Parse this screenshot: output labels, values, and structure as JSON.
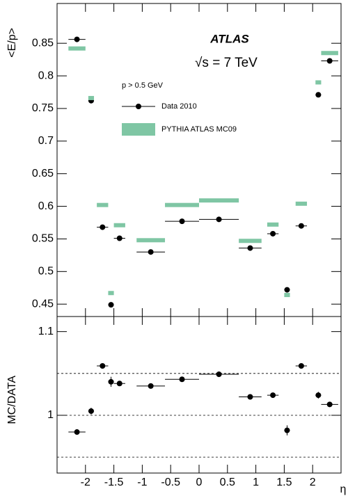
{
  "chart_data": [
    {
      "type": "scatter",
      "y_label": "<E/p>",
      "annotation": "ATLAS",
      "energy_label": "√s = 7 TeV",
      "cut_label": "p > 0.5 GeV",
      "x": [
        -2.15,
        -1.9,
        -1.7,
        -1.55,
        -1.4,
        -0.85,
        -0.3,
        0.35,
        0.9,
        1.3,
        1.55,
        1.8,
        2.1,
        2.3
      ],
      "xerr": [
        0.15,
        0.05,
        0.1,
        0.05,
        0.1,
        0.25,
        0.3,
        0.35,
        0.2,
        0.1,
        0.05,
        0.1,
        0.05,
        0.15
      ],
      "series": [
        {
          "name": "Data 2010",
          "color": "#000000",
          "marker": "dot",
          "values": [
            0.856,
            0.762,
            0.568,
            0.449,
            0.551,
            0.53,
            0.577,
            0.58,
            0.536,
            0.558,
            0.472,
            0.57,
            0.771,
            0.823
          ]
        },
        {
          "name": "PYTHIA  ATLAS MC09",
          "color": "#7fc6a4",
          "marker": "band",
          "values": [
            0.842,
            0.766,
            0.602,
            0.467,
            0.571,
            0.548,
            0.602,
            0.609,
            0.547,
            0.572,
            0.464,
            0.604,
            0.79,
            0.835
          ]
        }
      ],
      "xlim": [
        -2.5,
        2.5
      ],
      "ylim": [
        0.431,
        0.911
      ],
      "yticks": [
        0.45,
        0.5,
        0.55,
        0.6,
        0.65,
        0.7,
        0.75,
        0.8,
        0.85
      ]
    },
    {
      "type": "scatter",
      "y_label": "MC/DATA",
      "x_label": "η",
      "x": [
        -2.15,
        -1.9,
        -1.7,
        -1.55,
        -1.4,
        -0.85,
        -0.3,
        0.35,
        0.9,
        1.3,
        1.55,
        1.8,
        2.1,
        2.3
      ],
      "xerr": [
        0.15,
        0.05,
        0.1,
        0.05,
        0.1,
        0.25,
        0.3,
        0.35,
        0.2,
        0.1,
        0.05,
        0.1,
        0.05,
        0.15
      ],
      "series": [
        {
          "color": "#000000",
          "marker": "dot",
          "values": [
            0.98,
            1.005,
            1.059,
            1.04,
            1.038,
            1.035,
            1.043,
            1.049,
            1.022,
            1.024,
            0.982,
            1.059,
            1.024,
            1.013
          ],
          "yerr": [
            0.002,
            0.004,
            0.003,
            0.006,
            0.003,
            0.002,
            0.002,
            0.002,
            0.002,
            0.003,
            0.006,
            0.003,
            0.004,
            0.003
          ]
        }
      ],
      "reference_lines": [
        0.95,
        1,
        1.05
      ],
      "xlim": [
        -2.5,
        2.5
      ],
      "ylim": [
        0.931,
        1.118
      ],
      "xticks": [
        -2,
        -1.5,
        -1,
        -0.5,
        0,
        0.5,
        1,
        1.5,
        2
      ],
      "yticks": [
        1,
        1.1
      ]
    }
  ]
}
